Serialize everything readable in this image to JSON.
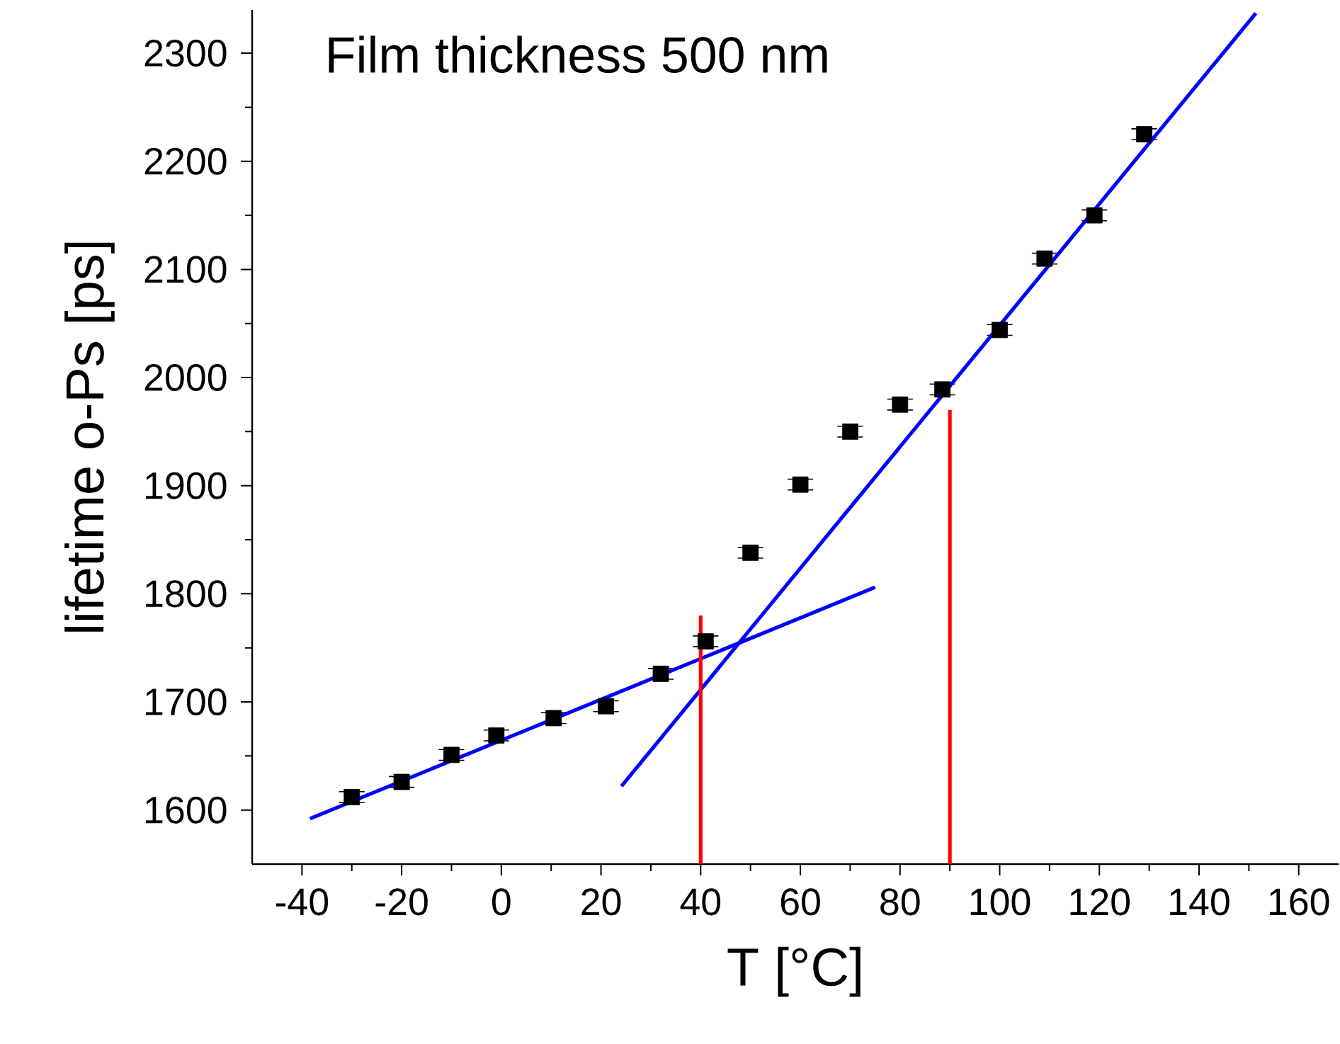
{
  "chart_data": {
    "type": "scatter",
    "xlabel": "T [°C]",
    "ylabel": "lifetime o-Ps [ps]",
    "annotations": [
      "Film thickness 500 nm"
    ],
    "xlim": [
      -50,
      168
    ],
    "ylim": [
      1550,
      2340
    ],
    "xticks": [
      -40,
      -20,
      0,
      20,
      40,
      60,
      80,
      100,
      120,
      140,
      160
    ],
    "yticks": [
      1600,
      1700,
      1800,
      1900,
      2000,
      2100,
      2200,
      2300
    ],
    "grid": false,
    "series": [
      {
        "color": "#000000",
        "marker": "square",
        "x": [
          -30,
          -20,
          -10,
          -1,
          10.5,
          21,
          32,
          41,
          50,
          60,
          70,
          80,
          88.5,
          100,
          109,
          119,
          129
        ],
        "values": [
          1612,
          1626,
          1651,
          1669,
          1685,
          1696,
          1726,
          1756,
          1838,
          1901,
          1950,
          1975,
          1989,
          2044,
          2110,
          2150,
          2225
        ],
        "errors": [
          5,
          5,
          5,
          5,
          5,
          5,
          5,
          5,
          5,
          5,
          5,
          5,
          5,
          5,
          5,
          5,
          5
        ]
      },
      {
        "type": "line",
        "color": "#0000ff",
        "marker": "none",
        "line_style": "solid",
        "x": [
          -38.4,
          75
        ],
        "values": [
          1592,
          1806
        ]
      },
      {
        "type": "line",
        "color": "#0000ff",
        "marker": "none",
        "line_style": "solid",
        "x": [
          24.1,
          151.4
        ],
        "values": [
          1622,
          2337
        ]
      },
      {
        "type": "line",
        "color": "#ff0000",
        "marker": "none",
        "line_style": "solid",
        "x": [
          40,
          40
        ],
        "values": [
          1550,
          1780
        ]
      },
      {
        "type": "line",
        "color": "#ff0000",
        "marker": "none",
        "line_style": "solid",
        "x": [
          90,
          90
        ],
        "values": [
          1550,
          1970
        ]
      }
    ]
  }
}
